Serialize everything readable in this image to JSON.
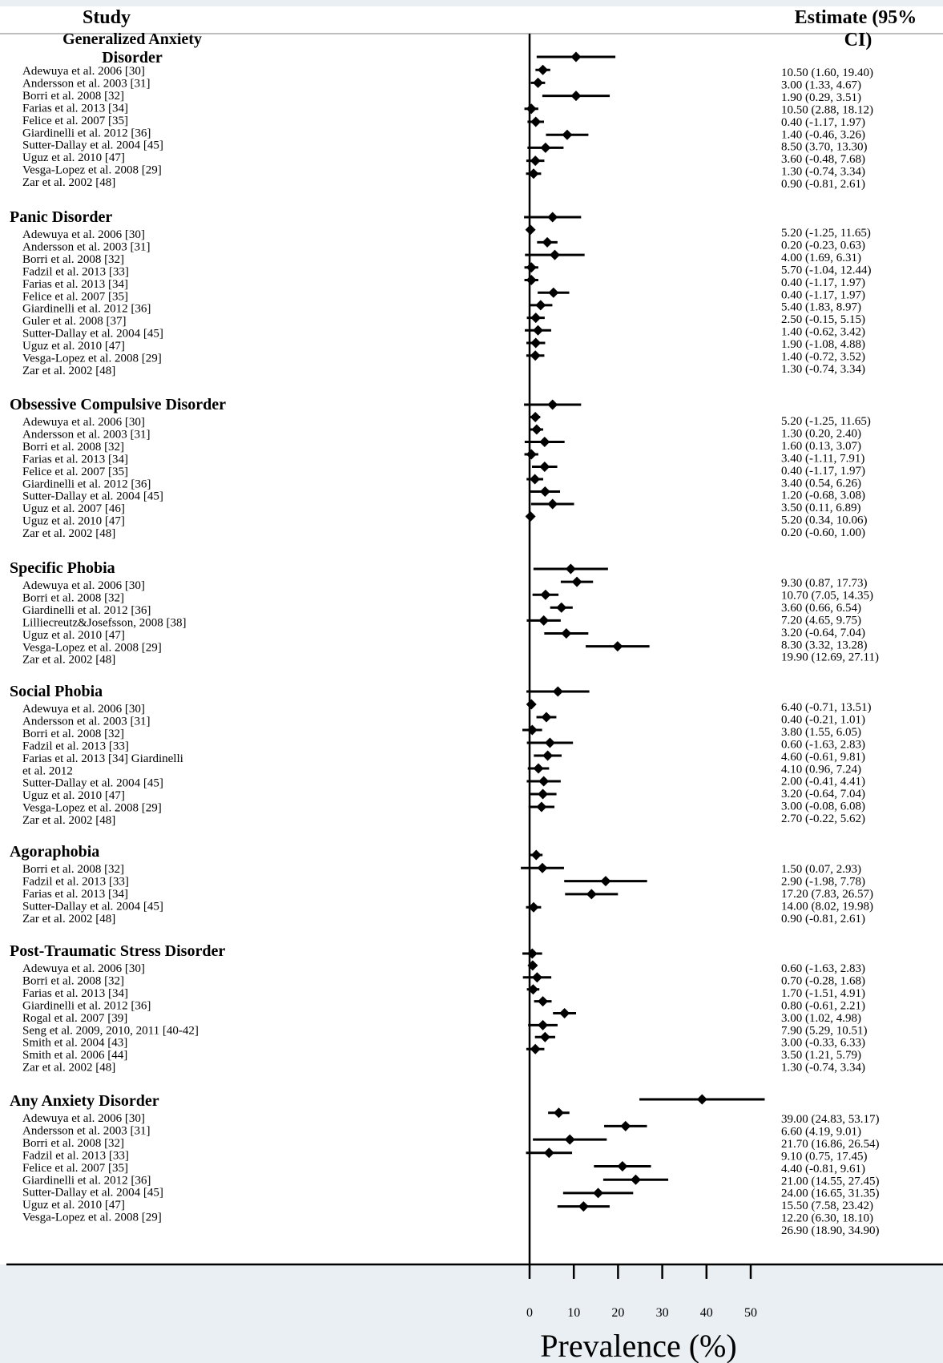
{
  "chart_data": {
    "type": "forest",
    "header_left": "Study",
    "header_right": "Estimate (95% CI)",
    "xlabel": "Prevalence (%)",
    "xlim": [
      0,
      50
    ],
    "xticks": [
      0,
      10,
      20,
      30,
      40,
      50
    ],
    "groups": [
      {
        "title": "Generalized Anxiety Disorder",
        "studies": [
          {
            "label": "Adewuya et al. 2006 [30]",
            "est": 10.5,
            "lo": 1.6,
            "hi": 19.4,
            "text": "10.50 (1.60, 19.40)"
          },
          {
            "label": "Andersson et al. 2003 [31]",
            "est": 3.0,
            "lo": 1.33,
            "hi": 4.67,
            "text": "3.00 (1.33, 4.67)"
          },
          {
            "label": "Borri et al. 2008 [32]",
            "est": 1.9,
            "lo": 0.29,
            "hi": 3.51,
            "text": "1.90 (0.29, 3.51)"
          },
          {
            "label": "Farias et al. 2013 [34]",
            "est": 10.5,
            "lo": 2.88,
            "hi": 18.12,
            "text": "10.50 (2.88, 18.12)"
          },
          {
            "label": "Felice et al. 2007 [35]",
            "est": 0.4,
            "lo": -1.17,
            "hi": 1.97,
            "text": "0.40 (-1.17, 1.97)"
          },
          {
            "label": "Giardinelli et al. 2012 [36]",
            "est": 1.4,
            "lo": -0.46,
            "hi": 3.26,
            "text": "1.40 (-0.46, 3.26)"
          },
          {
            "label": "Sutter-Dallay et al. 2004 [45]",
            "est": 8.5,
            "lo": 3.7,
            "hi": 13.3,
            "text": "8.50 (3.70, 13.30)"
          },
          {
            "label": "Uguz et al. 2010 [47]",
            "est": 3.6,
            "lo": -0.48,
            "hi": 7.68,
            "text": "3.60 (-0.48, 7.68)"
          },
          {
            "label": "Vesga-Lopez et al. 2008 [29]",
            "est": 1.3,
            "lo": -0.74,
            "hi": 3.34,
            "text": "1.30 (-0.74, 3.34)"
          },
          {
            "label": "Zar et al. 2002 [48]",
            "est": 0.9,
            "lo": -0.81,
            "hi": 2.61,
            "text": "0.90 (-0.81, 2.61)"
          }
        ]
      },
      {
        "title": "Panic Disorder",
        "studies": [
          {
            "label": "Adewuya et al. 2006 [30]",
            "est": 5.2,
            "lo": -1.25,
            "hi": 11.65,
            "text": "5.20 (-1.25, 11.65)"
          },
          {
            "label": "Andersson et al. 2003 [31]",
            "est": 0.2,
            "lo": -0.23,
            "hi": 0.63,
            "text": "0.20 (-0.23, 0.63)"
          },
          {
            "label": "Borri et al. 2008 [32]",
            "est": 4.0,
            "lo": 1.69,
            "hi": 6.31,
            "text": "4.00 (1.69, 6.31)"
          },
          {
            "label": "Fadzil et al. 2013 [33]",
            "est": 5.7,
            "lo": -1.04,
            "hi": 12.44,
            "text": "5.70 (-1.04, 12.44)"
          },
          {
            "label": "Farias et al. 2013 [34]",
            "est": 0.4,
            "lo": -1.17,
            "hi": 1.97,
            "text": "0.40 (-1.17, 1.97)"
          },
          {
            "label": "Felice et al. 2007 [35]",
            "est": 0.4,
            "lo": -1.17,
            "hi": 1.97,
            "text": "0.40 (-1.17, 1.97)"
          },
          {
            "label": "Giardinelli et al. 2012 [36]",
            "est": 5.4,
            "lo": 1.83,
            "hi": 8.97,
            "text": "5.40 (1.83, 8.97)"
          },
          {
            "label": "Guler et al. 2008 [37]",
            "est": 2.5,
            "lo": -0.15,
            "hi": 5.15,
            "text": "2.50 (-0.15, 5.15)"
          },
          {
            "label": "Sutter-Dallay et al. 2004 [45]",
            "est": 1.4,
            "lo": -0.62,
            "hi": 3.42,
            "text": "1.40 (-0.62, 3.42)"
          },
          {
            "label": "Uguz et al. 2010 [47]",
            "est": 1.9,
            "lo": -1.08,
            "hi": 4.88,
            "text": "1.90 (-1.08, 4.88)"
          },
          {
            "label": "Vesga-Lopez et al. 2008 [29]",
            "est": 1.4,
            "lo": -0.72,
            "hi": 3.52,
            "text": "1.40 (-0.72, 3.52)"
          },
          {
            "label": "Zar et al. 2002 [48]",
            "est": 1.3,
            "lo": -0.74,
            "hi": 3.34,
            "text": "1.30 (-0.74, 3.34)"
          }
        ]
      },
      {
        "title": "Obsessive Compulsive Disorder",
        "studies": [
          {
            "label": "Adewuya et al. 2006 [30]",
            "est": 5.2,
            "lo": -1.25,
            "hi": 11.65,
            "text": "5.20 (-1.25, 11.65)"
          },
          {
            "label": "Andersson et al. 2003 [31]",
            "est": 1.3,
            "lo": 0.2,
            "hi": 2.4,
            "text": "1.30 (0.20, 2.40)"
          },
          {
            "label": "Borri et al. 2008 [32]",
            "est": 1.6,
            "lo": 0.13,
            "hi": 3.07,
            "text": "1.60 (0.13, 3.07)"
          },
          {
            "label": "Farias et al. 2013 [34]",
            "est": 3.4,
            "lo": -1.11,
            "hi": 7.91,
            "text": "3.40 (-1.11, 7.91)"
          },
          {
            "label": "Felice et al. 2007 [35]",
            "est": 0.4,
            "lo": -1.17,
            "hi": 1.97,
            "text": "0.40 (-1.17, 1.97)"
          },
          {
            "label": "Giardinelli et al. 2012 [36]",
            "est": 3.4,
            "lo": 0.54,
            "hi": 6.26,
            "text": "3.40 (0.54, 6.26)"
          },
          {
            "label": "Sutter-Dallay et al. 2004 [45]",
            "est": 1.2,
            "lo": -0.68,
            "hi": 3.08,
            "text": "1.20 (-0.68, 3.08)"
          },
          {
            "label": "Uguz et al. 2007 [46]",
            "est": 3.5,
            "lo": 0.11,
            "hi": 6.89,
            "text": "3.50 (0.11, 6.89)"
          },
          {
            "label": "Uguz et al. 2010 [47]",
            "est": 5.2,
            "lo": 0.34,
            "hi": 10.06,
            "text": "5.20 (0.34, 10.06)"
          },
          {
            "label": "Zar et al. 2002 [48]",
            "est": 0.2,
            "lo": -0.6,
            "hi": 1.0,
            "text": "0.20 (-0.60, 1.00)"
          }
        ]
      },
      {
        "title": "Specific Phobia",
        "studies": [
          {
            "label": "Adewuya et al. 2006 [30]",
            "est": 9.3,
            "lo": 0.87,
            "hi": 17.73,
            "text": "9.30 (0.87, 17.73)"
          },
          {
            "label": "Borri et al. 2008 [32]",
            "est": 10.7,
            "lo": 7.05,
            "hi": 14.35,
            "text": "10.70 (7.05, 14.35)"
          },
          {
            "label": "Giardinelli et al. 2012 [36]",
            "est": 3.6,
            "lo": 0.66,
            "hi": 6.54,
            "text": "3.60 (0.66, 6.54)"
          },
          {
            "label": "Lilliecreutz&Josefsson, 2008 [38]",
            "est": 7.2,
            "lo": 4.65,
            "hi": 9.75,
            "text": "7.20 (4.65, 9.75)"
          },
          {
            "label": "Uguz et al. 2010 [47]",
            "est": 3.2,
            "lo": -0.64,
            "hi": 7.04,
            "text": "3.20 (-0.64, 7.04)"
          },
          {
            "label": "Vesga-Lopez et al. 2008 [29]",
            "est": 8.3,
            "lo": 3.32,
            "hi": 13.28,
            "text": "8.30 (3.32, 13.28)"
          },
          {
            "label": "Zar et al. 2002 [48]",
            "est": 19.9,
            "lo": 12.69,
            "hi": 27.11,
            "text": "19.90 (12.69, 27.11)"
          }
        ]
      },
      {
        "title": "Social Phobia",
        "studies": [
          {
            "label": "Adewuya et al. 2006 [30]",
            "est": 6.4,
            "lo": -0.71,
            "hi": 13.51,
            "text": "6.40 (-0.71, 13.51)"
          },
          {
            "label": "Andersson et al. 2003 [31]",
            "est": 0.4,
            "lo": -0.21,
            "hi": 1.01,
            "text": "0.40 (-0.21, 1.01)"
          },
          {
            "label": "Borri et al. 2008 [32]",
            "est": 3.8,
            "lo": 1.55,
            "hi": 6.05,
            "text": "3.80 (1.55, 6.05)"
          },
          {
            "label": "Fadzil et al. 2013 [33]",
            "est": 0.6,
            "lo": -1.63,
            "hi": 2.83,
            "text": "0.60 (-1.63, 2.83)"
          },
          {
            "label": "Farias et al. 2013 [34] Giardinelli",
            "est": 4.6,
            "lo": -0.61,
            "hi": 9.81,
            "text": "4.60 (-0.61, 9.81)"
          },
          {
            "label": "et al. 2012",
            "est": 4.1,
            "lo": 0.96,
            "hi": 7.24,
            "text": "4.10 (0.96, 7.24)"
          },
          {
            "label": "Sutter-Dallay et al. 2004 [45]",
            "est": 2.0,
            "lo": -0.41,
            "hi": 4.41,
            "text": "2.00 (-0.41, 4.41)"
          },
          {
            "label": "Uguz et al. 2010 [47]",
            "est": 3.2,
            "lo": -0.64,
            "hi": 7.04,
            "text": "3.20 (-0.64, 7.04)"
          },
          {
            "label": "Vesga-Lopez et al. 2008 [29]",
            "est": 3.0,
            "lo": -0.08,
            "hi": 6.08,
            "text": "3.00 (-0.08, 6.08)"
          },
          {
            "label": "Zar et al. 2002 [48]",
            "est": 2.7,
            "lo": -0.22,
            "hi": 5.62,
            "text": "2.70 (-0.22, 5.62)"
          }
        ]
      },
      {
        "title": "Agoraphobia",
        "studies": [
          {
            "label": "Borri et al. 2008 [32]",
            "est": 1.5,
            "lo": 0.07,
            "hi": 2.93,
            "text": "1.50 (0.07, 2.93)"
          },
          {
            "label": "Fadzil et al. 2013 [33]",
            "est": 2.9,
            "lo": -1.98,
            "hi": 7.78,
            "text": "2.90 (-1.98, 7.78)"
          },
          {
            "label": "Farias et al. 2013 [34]",
            "est": 17.2,
            "lo": 7.83,
            "hi": 26.57,
            "text": "17.20 (7.83, 26.57)"
          },
          {
            "label": "Sutter-Dallay et al. 2004 [45]",
            "est": 14.0,
            "lo": 8.02,
            "hi": 19.98,
            "text": "14.00 (8.02, 19.98)"
          },
          {
            "label": "Zar et al. 2002 [48]",
            "est": 0.9,
            "lo": -0.81,
            "hi": 2.61,
            "text": "0.90 (-0.81, 2.61)"
          }
        ]
      },
      {
        "title": "Post-Traumatic Stress Disorder",
        "studies": [
          {
            "label": "Adewuya et al. 2006 [30]",
            "est": 0.6,
            "lo": -1.63,
            "hi": 2.83,
            "text": "0.60 (-1.63, 2.83)"
          },
          {
            "label": "Borri et al. 2008 [32]",
            "est": 0.7,
            "lo": -0.28,
            "hi": 1.68,
            "text": "0.70 (-0.28, 1.68)"
          },
          {
            "label": "Farias et al. 2013 [34]",
            "est": 1.7,
            "lo": -1.51,
            "hi": 4.91,
            "text": "1.70 (-1.51, 4.91)"
          },
          {
            "label": "Giardinelli et al. 2012 [36]",
            "est": 0.8,
            "lo": -0.61,
            "hi": 2.21,
            "text": "0.80 (-0.61, 2.21)"
          },
          {
            "label": "Rogal et al. 2007 [39]",
            "est": 3.0,
            "lo": 1.02,
            "hi": 4.98,
            "text": "3.00 (1.02, 4.98)"
          },
          {
            "label": "Seng et al. 2009, 2010, 2011 [40-42]",
            "est": 7.9,
            "lo": 5.29,
            "hi": 10.51,
            "text": "7.90 (5.29, 10.51)"
          },
          {
            "label": "Smith et al. 2004 [43]",
            "est": 3.0,
            "lo": -0.33,
            "hi": 6.33,
            "text": "3.00 (-0.33, 6.33)"
          },
          {
            "label": "Smith et al. 2006 [44]",
            "est": 3.5,
            "lo": 1.21,
            "hi": 5.79,
            "text": "3.50 (1.21, 5.79)"
          },
          {
            "label": "Zar et al. 2002 [48]",
            "est": 1.3,
            "lo": -0.74,
            "hi": 3.34,
            "text": "1.30 (-0.74, 3.34)"
          }
        ]
      },
      {
        "title": "Any Anxiety Disorder",
        "studies": [
          {
            "label": "Adewuya et al. 2006 [30]",
            "est": 39.0,
            "lo": 24.83,
            "hi": 53.17,
            "text": "39.00 (24.83, 53.17)"
          },
          {
            "label": "Andersson et al. 2003 [31]",
            "est": 6.6,
            "lo": 4.19,
            "hi": 9.01,
            "text": "6.60 (4.19, 9.01)"
          },
          {
            "label": "Borri et al. 2008 [32]",
            "est": 21.7,
            "lo": 16.86,
            "hi": 26.54,
            "text": "21.70 (16.86, 26.54)"
          },
          {
            "label": "Fadzil et al. 2013 [33]",
            "est": 9.1,
            "lo": 0.75,
            "hi": 17.45,
            "text": "9.10 (0.75, 17.45)"
          },
          {
            "label": "Felice et al. 2007 [35]",
            "est": 4.4,
            "lo": -0.81,
            "hi": 9.61,
            "text": "4.40 (-0.81, 9.61)"
          },
          {
            "label": "Giardinelli et al. 2012 [36]",
            "est": 21.0,
            "lo": 14.55,
            "hi": 27.45,
            "text": "21.00 (14.55, 27.45)"
          },
          {
            "label": "Sutter-Dallay et al. 2004 [45]",
            "est": 24.0,
            "lo": 16.65,
            "hi": 31.35,
            "text": "24.00 (16.65, 31.35)"
          },
          {
            "label": "Uguz et al. 2010 [47]",
            "est": 15.5,
            "lo": 7.58,
            "hi": 23.42,
            "text": "15.50 (7.58, 23.42)"
          },
          {
            "label": "Vesga-Lopez et al. 2008 [29]",
            "est": 12.2,
            "lo": 6.3,
            "hi": 18.1,
            "text": "12.20 (6.30, 18.10)"
          }
        ],
        "extra_estimates": [
          "26.90 (18.90, 34.90)"
        ]
      }
    ]
  }
}
